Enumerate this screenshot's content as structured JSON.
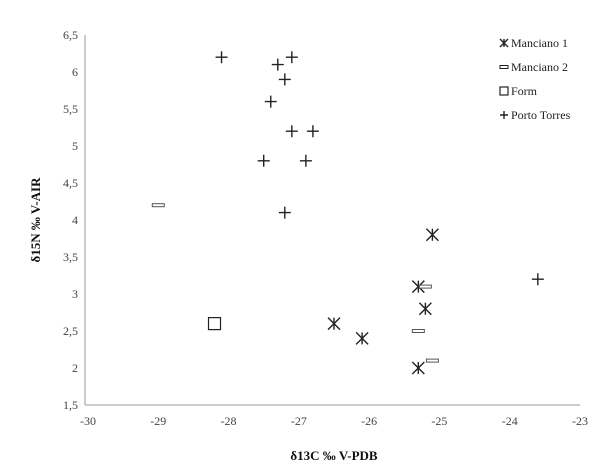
{
  "chart_data": {
    "type": "scatter",
    "xlabel": "δ13C ‰ V-PDB",
    "ylabel": "δ15N ‰ V-AIR",
    "xlim": [
      -30,
      -23
    ],
    "ylim": [
      1.5,
      6.5
    ],
    "xticks": [
      "-30",
      "-29",
      "-28",
      "-27",
      "-26",
      "-25",
      "-24",
      "-23"
    ],
    "yticks": [
      "1,5",
      "2",
      "2,5",
      "3",
      "3,5",
      "4",
      "4,5",
      "5",
      "5,5",
      "6",
      "6,5"
    ],
    "grid": false,
    "legend_position": "top-right",
    "series": [
      {
        "name": "Manciano 1",
        "marker": "asterisk",
        "color": "#222222",
        "points": [
          [
            -25.1,
            3.8
          ],
          [
            -25.3,
            3.1
          ],
          [
            -25.2,
            2.8
          ],
          [
            -26.5,
            2.6
          ],
          [
            -26.1,
            2.4
          ],
          [
            -25.3,
            2.0
          ]
        ]
      },
      {
        "name": "Manciano 2",
        "marker": "dash",
        "color": "#555555",
        "points": [
          [
            -29.0,
            4.2
          ],
          [
            -25.2,
            3.1
          ],
          [
            -25.3,
            2.5
          ],
          [
            -25.1,
            2.1
          ]
        ]
      },
      {
        "name": "Form",
        "marker": "square",
        "color": "#222222",
        "points": [
          [
            -28.2,
            2.6
          ]
        ]
      },
      {
        "name": "Porto Torres",
        "marker": "plus",
        "color": "#222222",
        "points": [
          [
            -28.1,
            6.2
          ],
          [
            -27.3,
            6.1
          ],
          [
            -27.1,
            6.2
          ],
          [
            -27.2,
            5.9
          ],
          [
            -27.4,
            5.6
          ],
          [
            -27.1,
            5.2
          ],
          [
            -26.8,
            5.2
          ],
          [
            -27.5,
            4.8
          ],
          [
            -26.9,
            4.8
          ],
          [
            -27.2,
            4.1
          ],
          [
            -23.6,
            3.2
          ]
        ]
      }
    ]
  }
}
